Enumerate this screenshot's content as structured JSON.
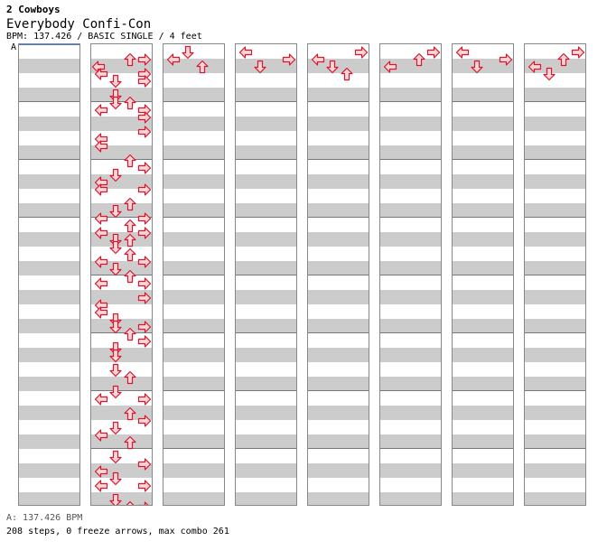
{
  "header": {
    "artist": "2 Cowboys",
    "title": "Everybody Confi-Con",
    "info": "BPM: 137.426 / BASIC SINGLE / 4 feet",
    "marker": "A"
  },
  "footer": {
    "bpm_line": "A: 137.426 BPM",
    "steps_line": "208 steps, 0 freeze arrows, max combo 261"
  },
  "colors": {
    "arrow_fill": "#ffd4d4",
    "arrow_stroke": "#d81830",
    "stripe": "#cccccc",
    "bpm_marker": "#4a78c8"
  },
  "chart_data": {
    "type": "table",
    "lanes": [
      "left",
      "down",
      "up",
      "right"
    ],
    "columns": [
      {
        "measures": 4,
        "notes": []
      },
      {
        "measures": 8,
        "notes": [
          [
            1,
            2
          ],
          [
            1,
            3
          ],
          [
            2,
            5
          ],
          [
            3,
            0
          ],
          [
            3,
            3
          ],
          [
            4,
            1
          ],
          [
            4,
            3
          ],
          [
            6,
            1
          ],
          [
            7,
            1
          ],
          [
            7,
            2
          ],
          [
            8,
            0
          ],
          [
            8,
            3
          ],
          [
            9,
            3
          ],
          [
            11,
            3
          ],
          [
            12,
            0
          ],
          [
            13,
            0
          ],
          [
            15,
            2
          ],
          [
            16,
            3
          ],
          [
            17,
            1
          ],
          [
            18,
            0
          ],
          [
            19,
            0
          ],
          [
            19,
            3
          ],
          [
            21,
            2
          ],
          [
            22,
            1
          ],
          [
            23,
            0
          ],
          [
            23,
            3
          ],
          [
            24,
            2
          ],
          [
            25,
            0
          ],
          [
            25,
            3
          ],
          [
            26,
            1
          ],
          [
            26,
            2
          ],
          [
            27,
            1
          ],
          [
            28,
            2
          ],
          [
            29,
            0
          ],
          [
            29,
            3
          ],
          [
            30,
            1
          ],
          [
            31,
            2
          ],
          [
            32,
            0
          ],
          [
            32,
            3
          ],
          [
            34,
            3
          ],
          [
            35,
            0
          ],
          [
            36,
            0
          ],
          [
            37,
            1
          ],
          [
            38,
            1
          ],
          [
            38,
            3
          ],
          [
            39,
            2
          ],
          [
            40,
            3
          ],
          [
            41,
            1
          ],
          [
            42,
            1
          ],
          [
            44,
            1
          ],
          [
            45,
            2
          ],
          [
            47,
            1
          ],
          [
            48,
            0
          ],
          [
            48,
            3
          ],
          [
            50,
            2
          ],
          [
            51,
            3
          ],
          [
            52,
            1
          ],
          [
            53,
            0
          ],
          [
            54,
            2
          ],
          [
            56,
            1
          ],
          [
            57,
            3
          ],
          [
            58,
            0
          ],
          [
            59,
            1
          ],
          [
            60,
            0
          ],
          [
            60,
            3
          ],
          [
            62,
            1
          ],
          [
            63,
            2
          ],
          [
            63,
            3
          ]
        ]
      },
      {
        "measures": 8,
        "notes": [
          [
            0,
            1
          ],
          [
            1,
            0
          ],
          [
            2,
            2
          ]
        ]
      },
      {
        "measures": 8,
        "notes": [
          [
            0,
            0
          ],
          [
            1,
            3
          ],
          [
            2,
            1
          ]
        ]
      },
      {
        "measures": 8,
        "notes": [
          [
            0,
            3
          ],
          [
            1,
            0
          ],
          [
            2,
            1
          ],
          [
            3,
            2
          ]
        ]
      },
      {
        "measures": 8,
        "notes": [
          [
            0,
            3
          ],
          [
            1,
            2
          ],
          [
            2,
            0
          ]
        ]
      },
      {
        "measures": 8,
        "notes": [
          [
            0,
            0
          ],
          [
            1,
            3
          ],
          [
            2,
            1
          ]
        ]
      },
      {
        "measures": 8,
        "notes": [
          [
            0,
            3
          ],
          [
            1,
            2
          ],
          [
            2,
            0
          ],
          [
            3,
            1
          ]
        ]
      }
    ]
  }
}
